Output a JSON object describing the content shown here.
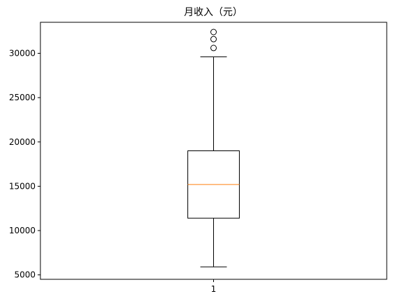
{
  "chart_data": {
    "type": "box",
    "title": "月收入（元）",
    "xlabel": "",
    "ylabel": "",
    "categories": [
      "1"
    ],
    "ylim": [
      4500,
      33500
    ],
    "yticks": [
      5000,
      10000,
      15000,
      20000,
      25000,
      30000
    ],
    "ytick_labels": [
      "5000",
      "10000",
      "15000",
      "20000",
      "25000",
      "30000"
    ],
    "box": {
      "whisker_low": 5900,
      "q1": 11400,
      "median": 15200,
      "q3": 19000,
      "whisker_high": 29600
    },
    "outliers": [
      30600,
      31600,
      32400
    ],
    "grid": false,
    "colors": {
      "box": "#000000",
      "median": "#ff7f0e",
      "whisker": "#000000",
      "flier": "#000000"
    }
  }
}
